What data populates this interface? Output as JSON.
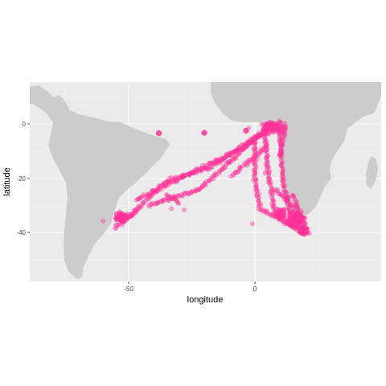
{
  "chart_data": {
    "type": "scatter",
    "xlabel": "longitude",
    "ylabel": "latitude",
    "xlim": [
      -86,
      50
    ],
    "ylim": [
      -60,
      16
    ],
    "x_ticks": [
      -50,
      0
    ],
    "y_ticks": [
      0,
      -20,
      -40
    ],
    "grid": true,
    "colors": {
      "panel": "#ebebeb",
      "land": "#cccccc",
      "grid_major": "#ffffff",
      "points": "#ff3399"
    },
    "highlight_points": [
      {
        "lon": -20,
        "lat": -3.3
      },
      {
        "lon": -3.5,
        "lat": -2.5
      },
      {
        "lon": 13,
        "lat": -27
      },
      {
        "lon": -38,
        "lat": -3.4
      }
    ],
    "track_segments": [
      {
        "from": [
          -52,
          -36
        ],
        "to": [
          -35,
          -21
        ]
      },
      {
        "from": [
          -35,
          -21
        ],
        "to": [
          -18,
          -16
        ]
      },
      {
        "from": [
          -18,
          -16
        ],
        "to": [
          0,
          -5
        ]
      },
      {
        "from": [
          0,
          -5
        ],
        "to": [
          11,
          -2
        ]
      },
      {
        "from": [
          -47,
          -28
        ],
        "to": [
          -28,
          -19
        ]
      },
      {
        "from": [
          -28,
          -19
        ],
        "to": [
          -5,
          -9
        ]
      },
      {
        "from": [
          -5,
          -9
        ],
        "to": [
          8,
          0
        ]
      },
      {
        "from": [
          -42,
          -30
        ],
        "to": [
          -22,
          -24
        ]
      },
      {
        "from": [
          -22,
          -24
        ],
        "to": [
          -10,
          -14
        ]
      },
      {
        "from": [
          -10,
          -14
        ],
        "to": [
          5,
          -1
        ]
      },
      {
        "from": [
          -35,
          -26
        ],
        "to": [
          -30,
          -29
        ]
      },
      {
        "from": [
          -55,
          -38
        ],
        "to": [
          -47,
          -32
        ]
      },
      {
        "from": [
          -9,
          -19
        ],
        "to": [
          5,
          -8
        ]
      },
      {
        "from": [
          0,
          -5
        ],
        "to": [
          0,
          -20
        ]
      },
      {
        "from": [
          0,
          -20
        ],
        "to": [
          2,
          -31
        ]
      },
      {
        "from": [
          2,
          -31
        ],
        "to": [
          12,
          -36
        ]
      },
      {
        "from": [
          12,
          -36
        ],
        "to": [
          20,
          -40
        ]
      },
      {
        "from": [
          4,
          -3
        ],
        "to": [
          5,
          -16
        ]
      },
      {
        "from": [
          5,
          -16
        ],
        "to": [
          8,
          -33
        ]
      },
      {
        "from": [
          10,
          -3
        ],
        "to": [
          11,
          -20
        ]
      },
      {
        "from": [
          11,
          -20
        ],
        "to": [
          14,
          -34
        ]
      },
      {
        "from": [
          12,
          -1
        ],
        "to": [
          10,
          -12
        ]
      },
      {
        "from": [
          15,
          -26
        ],
        "to": [
          21,
          -40
        ]
      },
      {
        "from": [
          8,
          -24
        ],
        "to": [
          16,
          -31
        ]
      }
    ],
    "dense_clusters": [
      {
        "lon": 7,
        "lat": -1,
        "rx": 6,
        "ry": 2.5,
        "n": 110
      },
      {
        "lon": 16,
        "lat": -35,
        "rx": 4.5,
        "ry": 3.5,
        "n": 180
      },
      {
        "lon": 19,
        "lat": -39,
        "rx": 2.2,
        "ry": 1.8,
        "n": 70
      },
      {
        "lon": 10,
        "lat": -33,
        "rx": 3,
        "ry": 3,
        "n": 60
      },
      {
        "lon": -53,
        "lat": -34,
        "rx": 3.5,
        "ry": 3,
        "n": 50
      }
    ],
    "outlier_points": [
      {
        "lon": -60,
        "lat": -35.5
      },
      {
        "lon": -55,
        "lat": -37
      },
      {
        "lon": -33,
        "lat": -31
      },
      {
        "lon": -28,
        "lat": -31.5
      },
      {
        "lon": -1,
        "lat": -36.5
      },
      {
        "lon": -2.5,
        "lat": -1.5
      },
      {
        "lon": 4,
        "lat": -18
      }
    ]
  }
}
